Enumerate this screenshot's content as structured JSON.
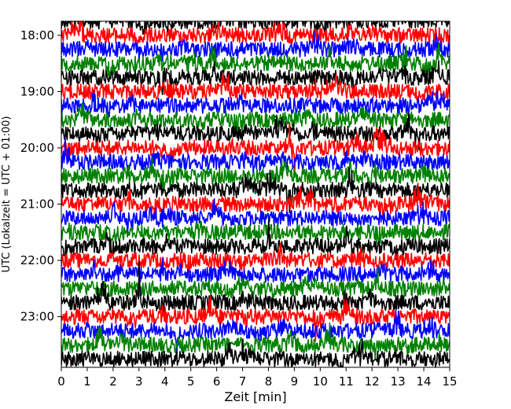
{
  "chart_data": {
    "type": "line",
    "title": "",
    "xlabel": "Zeit  [min]",
    "ylabel": "UTC (Lokalzeit = UTC + 01:00)",
    "xlim": [
      0,
      15
    ],
    "x_ticks": [
      0,
      1,
      2,
      3,
      4,
      5,
      6,
      7,
      8,
      9,
      10,
      11,
      12,
      13,
      14,
      15
    ],
    "y_ticks": [
      "18:00",
      "19:00",
      "20:00",
      "21:00",
      "22:00",
      "23:00"
    ],
    "ylim": [
      "17:45",
      "23:54"
    ],
    "line_interval_minutes": 15,
    "first_line": "17:45",
    "last_line": "23:45",
    "color_cycle": [
      "#000000",
      "#ff0000",
      "#0000ff",
      "#008000"
    ],
    "grid": false,
    "legend": "none"
  }
}
